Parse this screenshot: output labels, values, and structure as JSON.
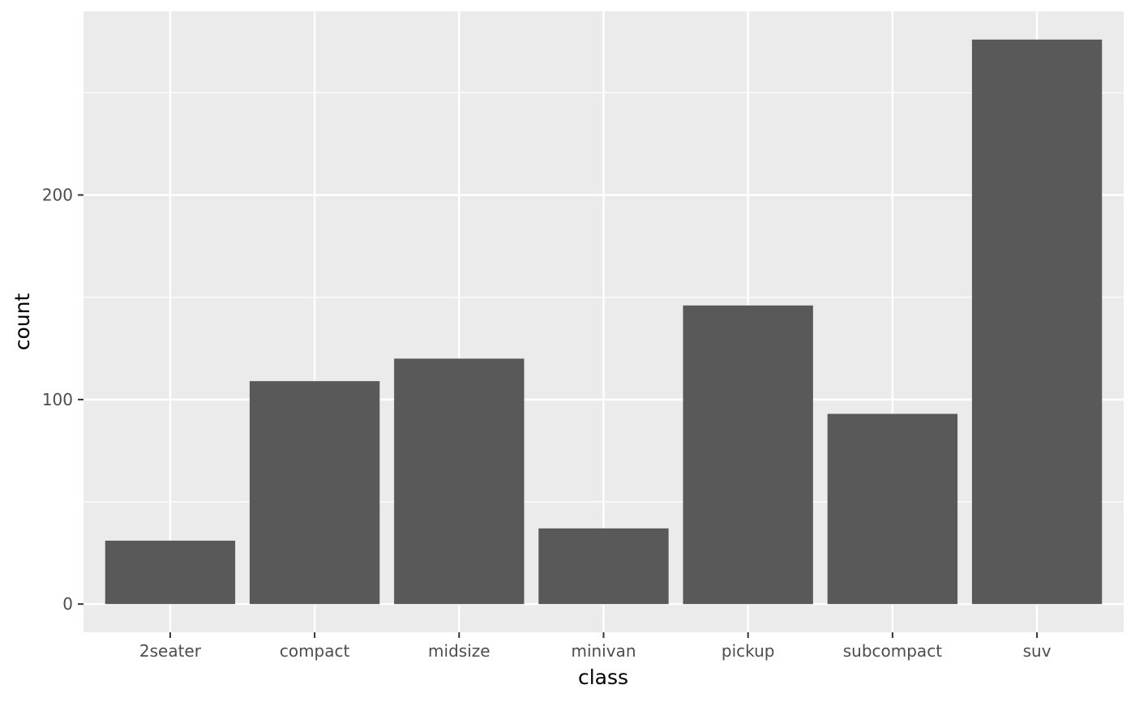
{
  "colors": {
    "panel_background": "#ebebeb",
    "grid_line": "#ffffff",
    "bar_fill": "#595959",
    "tick_mark": "#333333",
    "tick_label": "#4d4d4d",
    "axis_title": "#000000"
  },
  "chart_data": {
    "type": "bar",
    "categories": [
      "2seater",
      "compact",
      "midsize",
      "minivan",
      "pickup",
      "subcompact",
      "suv"
    ],
    "values": [
      31,
      109,
      120,
      37,
      146,
      93,
      276
    ],
    "xlabel": "class",
    "ylabel": "count",
    "ylim": [
      -13.8,
      289.8
    ],
    "yticks": [
      0,
      100,
      200
    ],
    "ytick_labels": [
      "0",
      "100",
      "200"
    ],
    "y_minor_ticks": [
      50,
      150,
      250
    ],
    "grid": true,
    "legend": "none"
  }
}
